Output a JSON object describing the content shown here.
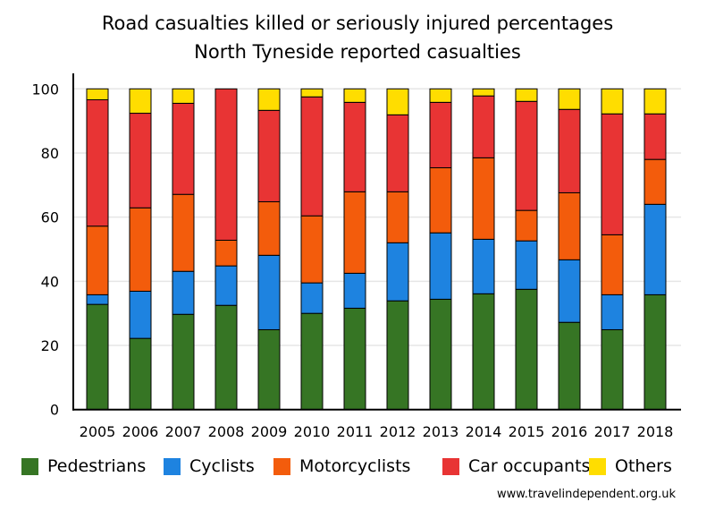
{
  "chart_data": {
    "type": "bar",
    "stacked": true,
    "title": "Road casualties killed or seriously injured percentages",
    "subtitle": "North Tyneside reported casualties",
    "xlabel": "",
    "ylabel": "",
    "ylim": [
      0,
      100
    ],
    "yticks": [
      "0",
      "20",
      "40",
      "60",
      "80",
      "100"
    ],
    "grid": true,
    "legend_position": "bottom",
    "categories": [
      "2005",
      "2006",
      "2007",
      "2008",
      "2009",
      "2010",
      "2011",
      "2012",
      "2013",
      "2014",
      "2015",
      "2016",
      "2017",
      "2018"
    ],
    "series": [
      {
        "name": "Pedestrians",
        "color": "#367524",
        "values": [
          32.8,
          22.2,
          29.7,
          32.5,
          24.9,
          30.0,
          31.6,
          33.9,
          34.4,
          36.1,
          37.5,
          27.2,
          24.9,
          35.8
        ]
      },
      {
        "name": "Cyclists",
        "color": "#1e83e0",
        "values": [
          3.0,
          14.7,
          13.4,
          12.3,
          23.2,
          9.5,
          10.9,
          18.1,
          20.7,
          17.0,
          15.1,
          19.5,
          10.9,
          28.2
        ]
      },
      {
        "name": "Motorcyclists",
        "color": "#f35c0c",
        "values": [
          21.4,
          26.0,
          24.0,
          8.0,
          16.7,
          20.9,
          25.4,
          15.9,
          20.3,
          25.4,
          9.5,
          20.9,
          18.7,
          14.0
        ]
      },
      {
        "name": "Car occupants",
        "color": "#e83434",
        "values": [
          39.4,
          29.5,
          28.4,
          47.2,
          28.5,
          37.1,
          27.9,
          24.0,
          20.4,
          19.3,
          34.0,
          26.0,
          37.7,
          14.2
        ]
      },
      {
        "name": "Others",
        "color": "#ffdd00",
        "values": [
          3.4,
          7.6,
          4.5,
          0.0,
          6.7,
          2.5,
          4.2,
          8.1,
          4.2,
          2.2,
          3.9,
          6.4,
          7.8,
          7.8
        ]
      }
    ]
  },
  "credit": "www.travelindependent.org.uk"
}
